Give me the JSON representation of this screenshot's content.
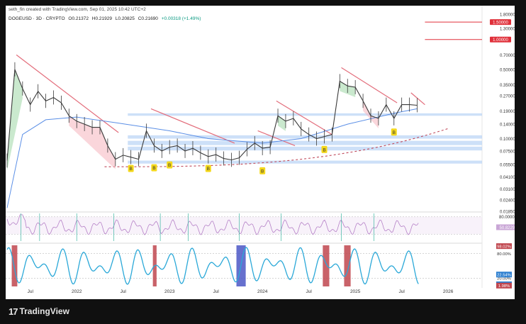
{
  "header": {
    "created_line": "seth_fin created with TradingView.com, Sep 01, 2025 10:42 UTC+2",
    "symbol": "DOGEUSD · 3D · CRYPTO",
    "open": "O0.21372",
    "high": "H0.21929",
    "low": "L0.20825",
    "close": "C0.21690",
    "change": "+0.00318 (+1.49%)"
  },
  "chart_data": {
    "type": "line",
    "title": "",
    "x_labels": [
      "Jul",
      "2022",
      "Jul",
      "2023",
      "Jul",
      "2024",
      "Jul",
      "2025",
      "Jul",
      "2026"
    ],
    "price_axis": {
      "scale": "log",
      "ylim": [
        0.0185,
        1.8
      ],
      "ticks": [
        "1.80000",
        "1.30000",
        "0.70000",
        "0.50000",
        "0.35000",
        "0.27000",
        "0.19000",
        "0.14000",
        "0.10000",
        "0.07500",
        "0.05500",
        "0.04100",
        "0.03100",
        "0.02400",
        "0.01850"
      ],
      "highlighted_levels": [
        {
          "label": "1.50000",
          "value": 1.5,
          "color": "#e0303a"
        },
        {
          "label": "1.00000",
          "value": 1.0,
          "color": "#e0303a"
        }
      ]
    },
    "series": [
      {
        "name": "",
        "color": "#3a3a3a",
        "x": [
          "2021-04",
          "2021-05",
          "2021-06",
          "2021-07",
          "2021-08",
          "2021-09",
          "2021-10",
          "2021-11",
          "2021-12",
          "2022-01",
          "2022-02",
          "2022-03",
          "2022-04",
          "2022-05",
          "2022-06",
          "2022-07",
          "2022-08",
          "2022-09",
          "2022-10",
          "2022-11",
          "2022-12",
          "2023-01",
          "2023-02",
          "2023-03",
          "2023-04",
          "2023-05",
          "2023-06",
          "2023-07",
          "2023-08",
          "2023-09",
          "2023-10",
          "2023-11",
          "2023-12",
          "2024-01",
          "2024-02",
          "2024-03",
          "2024-04",
          "2024-05",
          "2024-06",
          "2024-07",
          "2024-08",
          "2024-09",
          "2024-10",
          "2024-11",
          "2024-12",
          "2025-01",
          "2025-02",
          "2025-03",
          "2025-04",
          "2025-05",
          "2025-06",
          "2025-07",
          "2025-08",
          "2025-09"
        ],
        "values": [
          0.06,
          0.5,
          0.32,
          0.22,
          0.3,
          0.24,
          0.26,
          0.23,
          0.17,
          0.15,
          0.14,
          0.13,
          0.13,
          0.085,
          0.062,
          0.068,
          0.065,
          0.062,
          0.12,
          0.085,
          0.075,
          0.082,
          0.085,
          0.075,
          0.08,
          0.072,
          0.066,
          0.069,
          0.063,
          0.061,
          0.064,
          0.078,
          0.09,
          0.08,
          0.082,
          0.17,
          0.15,
          0.16,
          0.125,
          0.11,
          0.1,
          0.105,
          0.11,
          0.38,
          0.34,
          0.33,
          0.24,
          0.17,
          0.16,
          0.22,
          0.16,
          0.22,
          0.22,
          0.217
        ]
      },
      {
        "name": "",
        "color": "#5b8fe6",
        "x": [
          "2021-04",
          "2021-06",
          "2021-09",
          "2022-01",
          "2022-06",
          "2023-01",
          "2023-06",
          "2024-01",
          "2024-06",
          "2024-12",
          "2025-06",
          "2025-09"
        ],
        "values": [
          0.02,
          0.11,
          0.155,
          0.165,
          0.145,
          0.12,
          0.1,
          0.09,
          0.1,
          0.14,
          0.18,
          0.2
        ]
      }
    ],
    "annotations": {
      "markers": [
        {
          "label": "B",
          "x": "2022-08",
          "y": 0.058
        },
        {
          "label": "B",
          "x": "2022-11",
          "y": 0.059
        },
        {
          "label": "B",
          "x": "2023-01",
          "y": 0.063
        },
        {
          "label": "B",
          "x": "2023-06",
          "y": 0.058
        },
        {
          "label": "B",
          "x": "2024-01",
          "y": 0.055
        },
        {
          "label": "B",
          "x": "2024-09",
          "y": 0.09
        },
        {
          "label": "B",
          "x": "2025-06",
          "y": 0.135
        }
      ],
      "support_zones": [
        {
          "low": 0.17,
          "high": 0.18
        },
        {
          "low": 0.1,
          "high": 0.108
        },
        {
          "low": 0.086,
          "high": 0.095
        },
        {
          "low": 0.076,
          "high": 0.083
        },
        {
          "low": 0.056,
          "high": 0.06
        }
      ]
    },
    "rsi_panel": {
      "levels": [
        "80.00000"
      ],
      "current_label": "50.82297"
    },
    "stoch_panel": {
      "labels": [
        "98.02%",
        "80.00%",
        "20.00%",
        "12.30%",
        "22.54%",
        "1.98%"
      ]
    },
    "colors": {
      "price": "#3a3a3a",
      "ma": "#5b8fe6",
      "downtrend": "#e36d7b",
      "support": "#c04b5c",
      "zone": "#bcd5f6",
      "marker": "#f4d81c",
      "bull_fill": "#9ed7a6",
      "bear_fill": "#f5b5bd",
      "rsi": "#b580c7"
    }
  },
  "footer": {
    "brand": "TradingView",
    "logo_icon": "tradingview-logo-icon"
  }
}
